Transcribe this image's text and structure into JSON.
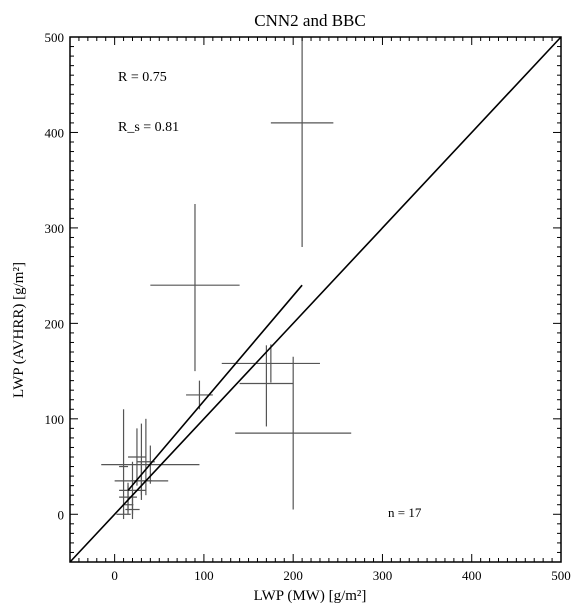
{
  "chart_data": {
    "type": "scatter",
    "title": "CNN2 and BBC",
    "xlabel": "LWP (MW) [g/m²]",
    "ylabel": "LWP (AVHRR) [g/m²]",
    "xlim": [
      -50,
      500
    ],
    "ylim": [
      -50,
      500
    ],
    "xticks": [
      0,
      100,
      200,
      300,
      400,
      500
    ],
    "yticks": [
      0,
      100,
      200,
      300,
      400,
      500
    ],
    "annotations": {
      "r": "R  = 0.75",
      "r_s": "R_s = 0.81",
      "n": "n =    17"
    },
    "points": [
      {
        "x": 210,
        "y": 410,
        "xerr": 35,
        "yerr_low": 130,
        "yerr_high": 90
      },
      {
        "x": 90,
        "y": 240,
        "xerr": 50,
        "yerr_low": 90,
        "yerr_high": 85
      },
      {
        "x": 95,
        "y": 125,
        "xerr": 15,
        "yerr_low": 15,
        "yerr_high": 15
      },
      {
        "x": 175,
        "y": 158,
        "xerr": 55,
        "yerr_low": 20,
        "yerr_high": 20
      },
      {
        "x": 170,
        "y": 137,
        "xerr": 30,
        "yerr_low": 45,
        "yerr_high": 40
      },
      {
        "x": 200,
        "y": 85,
        "xerr": 65,
        "yerr_low": 80,
        "yerr_high": 80
      },
      {
        "x": 40,
        "y": 52,
        "xerr": 55,
        "yerr_low": 20,
        "yerr_high": 20
      },
      {
        "x": 30,
        "y": 35,
        "xerr": 30,
        "yerr_low": 20,
        "yerr_high": 20
      },
      {
        "x": 35,
        "y": 55,
        "xerr": 10,
        "yerr_low": 35,
        "yerr_high": 45
      },
      {
        "x": 10,
        "y": 50,
        "xerr": 5,
        "yerr_low": 50,
        "yerr_high": 60
      },
      {
        "x": 20,
        "y": 25,
        "xerr": 15,
        "yerr_low": 25,
        "yerr_high": 30
      },
      {
        "x": 15,
        "y": 18,
        "xerr": 10,
        "yerr_low": 15,
        "yerr_high": 15
      },
      {
        "x": 20,
        "y": 5,
        "xerr": 8,
        "yerr_low": 10,
        "yerr_high": 15
      },
      {
        "x": 25,
        "y": 60,
        "xerr": 10,
        "yerr_low": 30,
        "yerr_high": 30
      },
      {
        "x": 10,
        "y": 0,
        "xerr": 8,
        "yerr_low": 5,
        "yerr_high": 5
      },
      {
        "x": 30,
        "y": 35,
        "xerr": 12,
        "yerr_low": 15,
        "yerr_high": 60
      },
      {
        "x": 15,
        "y": 10,
        "xerr": 6,
        "yerr_low": 10,
        "yerr_high": 20
      }
    ],
    "lines": [
      {
        "x1": -50,
        "y1": -50,
        "x2": 500,
        "y2": 500
      },
      {
        "x1": 15,
        "y1": 25,
        "x2": 210,
        "y2": 240
      }
    ]
  }
}
